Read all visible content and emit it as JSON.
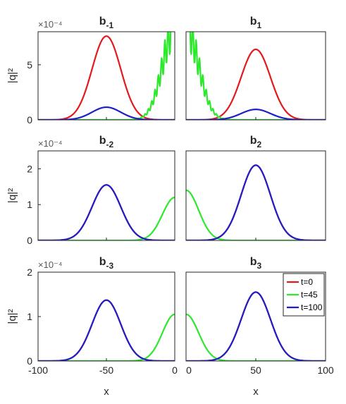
{
  "chart_data": {
    "type": "line",
    "ylabel": "|q|²",
    "xlabel": "x",
    "y_exponent": "×10⁻⁴",
    "legend": {
      "placement": "top-right of panel b3",
      "entries": [
        {
          "label": "t=0",
          "color": "#e31a1c"
        },
        {
          "label": "t=45",
          "color": "#2ee82e"
        },
        {
          "label": "t=100",
          "color": "#1f1fc8"
        }
      ]
    },
    "x_ticks_left": [
      "-100",
      "-50",
      "0"
    ],
    "x_ticks_right": [
      "0",
      "50",
      "100"
    ],
    "panels": [
      {
        "title_base": "b",
        "title_sub": "-1",
        "xlim": [
          -100,
          0
        ],
        "ylim": [
          0,
          8
        ],
        "y_ticks": [
          "0",
          "5"
        ],
        "y_tick_values": [
          0,
          5
        ],
        "show_exponent": true,
        "series": [
          {
            "name": "t=0",
            "shape": "gauss",
            "center": -50,
            "amplitude": 7.6,
            "width": 10.5
          },
          {
            "name": "t=45",
            "shape": "edge",
            "edge": 0,
            "amplitude": 8,
            "width": 9,
            "oscillating": true
          },
          {
            "name": "t=100",
            "shape": "gauss",
            "center": -50,
            "amplitude": 1.15,
            "width": 10.5
          }
        ]
      },
      {
        "title_base": "b",
        "title_sub": "1",
        "xlim": [
          0,
          100
        ],
        "ylim": [
          0,
          8
        ],
        "y_ticks": [],
        "y_tick_values": [],
        "show_exponent": false,
        "series": [
          {
            "name": "t=0",
            "shape": "gauss",
            "center": 50,
            "amplitude": 6.4,
            "width": 10.5
          },
          {
            "name": "t=45",
            "shape": "edge",
            "edge": 0,
            "amplitude": 8,
            "width": 9,
            "oscillating": true
          },
          {
            "name": "t=100",
            "shape": "gauss",
            "center": 50,
            "amplitude": 0.95,
            "width": 10.5
          }
        ]
      },
      {
        "title_base": "b",
        "title_sub": "-2",
        "xlim": [
          -100,
          0
        ],
        "ylim": [
          0,
          2.5
        ],
        "y_ticks": [
          "0",
          "1",
          "2"
        ],
        "y_tick_values": [
          0,
          1,
          2
        ],
        "show_exponent": true,
        "series": [
          {
            "name": "t=0",
            "shape": "gauss",
            "center": -50,
            "amplitude": 1.55,
            "width": 10.5
          },
          {
            "name": "t=45",
            "shape": "edge",
            "edge": 0,
            "amplitude": 1.2,
            "width": 9,
            "oscillating": false
          },
          {
            "name": "t=100",
            "shape": "gauss",
            "center": -50,
            "amplitude": 1.55,
            "width": 10.5
          }
        ]
      },
      {
        "title_base": "b",
        "title_sub": "2",
        "xlim": [
          0,
          100
        ],
        "ylim": [
          0,
          2.5
        ],
        "y_ticks": [],
        "y_tick_values": [],
        "show_exponent": false,
        "series": [
          {
            "name": "t=0",
            "shape": "gauss",
            "center": 50,
            "amplitude": 2.1,
            "width": 10.5
          },
          {
            "name": "t=45",
            "shape": "edge",
            "edge": 0,
            "amplitude": 1.4,
            "width": 9,
            "oscillating": false
          },
          {
            "name": "t=100",
            "shape": "gauss",
            "center": 50,
            "amplitude": 2.1,
            "width": 10.5
          }
        ]
      },
      {
        "title_base": "b",
        "title_sub": "-3",
        "xlim": [
          -100,
          0
        ],
        "ylim": [
          0,
          2
        ],
        "y_ticks": [
          "0",
          "1",
          "2"
        ],
        "y_tick_values": [
          0,
          1,
          2
        ],
        "show_exponent": true,
        "series": [
          {
            "name": "t=0",
            "shape": "gauss",
            "center": -50,
            "amplitude": 1.37,
            "width": 10.5
          },
          {
            "name": "t=45",
            "shape": "edge",
            "edge": 0,
            "amplitude": 1.05,
            "width": 9,
            "oscillating": false
          },
          {
            "name": "t=100",
            "shape": "gauss",
            "center": -50,
            "amplitude": 1.37,
            "width": 10.5
          }
        ]
      },
      {
        "title_base": "b",
        "title_sub": "3",
        "xlim": [
          0,
          100
        ],
        "ylim": [
          0,
          2
        ],
        "y_ticks": [],
        "y_tick_values": [],
        "show_exponent": false,
        "series": [
          {
            "name": "t=0",
            "shape": "gauss",
            "center": 50,
            "amplitude": 1.55,
            "width": 10.5
          },
          {
            "name": "t=45",
            "shape": "edge",
            "edge": 0,
            "amplitude": 1.05,
            "width": 9,
            "oscillating": false
          },
          {
            "name": "t=100",
            "shape": "gauss",
            "center": 50,
            "amplitude": 1.55,
            "width": 10.5
          }
        ]
      }
    ]
  }
}
